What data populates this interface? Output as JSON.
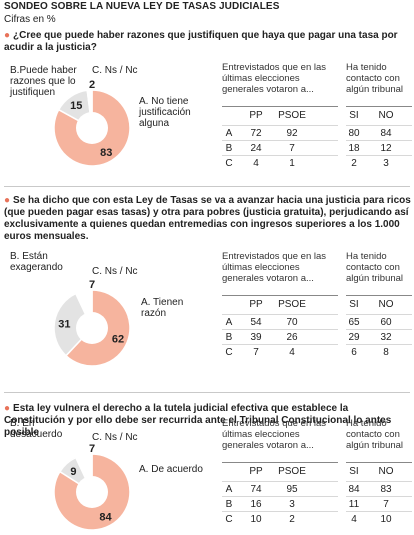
{
  "header": {
    "title": "SONDEO SOBRE LA NUEVA LEY DE TASAS JUDICIALES",
    "subtitle": "Cifras en %"
  },
  "colors": {
    "slice_a": "#f6b49e",
    "slice_b": "#e3e3e3",
    "slice_c": "#ffffff",
    "bullet": "#e8735a"
  },
  "table_headers": {
    "voters": "Entrevistados que en las últimas elecciones generales votaron a...",
    "contact": "Ha tenido contacto con algún tribunal",
    "pp": "PP",
    "psoe": "PSOE",
    "si": "SI",
    "no": "NO"
  },
  "questions": [
    {
      "text": "¿Cree que puede haber razones que justifiquen que haya que pagar una tasa por acudir a la justicia?",
      "options": {
        "a": "A. No tiene justificación alguna",
        "b": "B.Puede haber razones que lo justifiquen",
        "c": "C. Ns / Nc"
      },
      "rows": [
        {
          "key": "A",
          "pp": "72",
          "psoe": "92",
          "si": "80",
          "no": "84"
        },
        {
          "key": "B",
          "pp": "24",
          "psoe": "7",
          "si": "18",
          "no": "12"
        },
        {
          "key": "C",
          "pp": "4",
          "psoe": "1",
          "si": "2",
          "no": "3"
        }
      ]
    },
    {
      "text": "Se ha dicho que con esta Ley de Tasas se va a avanzar hacia una justicia para ricos (que pueden pagar esas tasas) y otra para pobres (justicia gratuita), perjudicando así exclusivamente a quienes quedan entremedias con ingresos superiores a los 1.000 euros mensuales.",
      "options": {
        "a": "A. Tienen razón",
        "b": "B. Están exagerando",
        "c": "C. Ns / Nc"
      },
      "rows": [
        {
          "key": "A",
          "pp": "54",
          "psoe": "70",
          "si": "65",
          "no": "60"
        },
        {
          "key": "B",
          "pp": "39",
          "psoe": "26",
          "si": "29",
          "no": "32"
        },
        {
          "key": "C",
          "pp": "7",
          "psoe": "4",
          "si": "6",
          "no": "8"
        }
      ]
    },
    {
      "text": "Esta ley vulnera el derecho a la tutela judicial efectiva que establece la Constitución y por ello debe ser recurrida ante el Tribunal Constitucional lo antes posible",
      "options": {
        "a": "A. De acuerdo",
        "b": "B. En desacuerdo",
        "c": "C. Ns / Nc"
      },
      "rows": [
        {
          "key": "A",
          "pp": "74",
          "psoe": "95",
          "si": "84",
          "no": "83"
        },
        {
          "key": "B",
          "pp": "16",
          "psoe": "3",
          "si": "11",
          "no": "7"
        },
        {
          "key": "C",
          "pp": "10",
          "psoe": "2",
          "si": "4",
          "no": "10"
        }
      ]
    }
  ],
  "chart_data": [
    {
      "type": "pie",
      "categories": [
        "A",
        "B",
        "C"
      ],
      "values": [
        83,
        15,
        2
      ],
      "hole": true
    },
    {
      "type": "pie",
      "categories": [
        "A",
        "B",
        "C"
      ],
      "values": [
        62,
        31,
        7
      ],
      "hole": true
    },
    {
      "type": "pie",
      "categories": [
        "A",
        "B",
        "C"
      ],
      "values": [
        84,
        9,
        7
      ],
      "hole": true
    }
  ]
}
